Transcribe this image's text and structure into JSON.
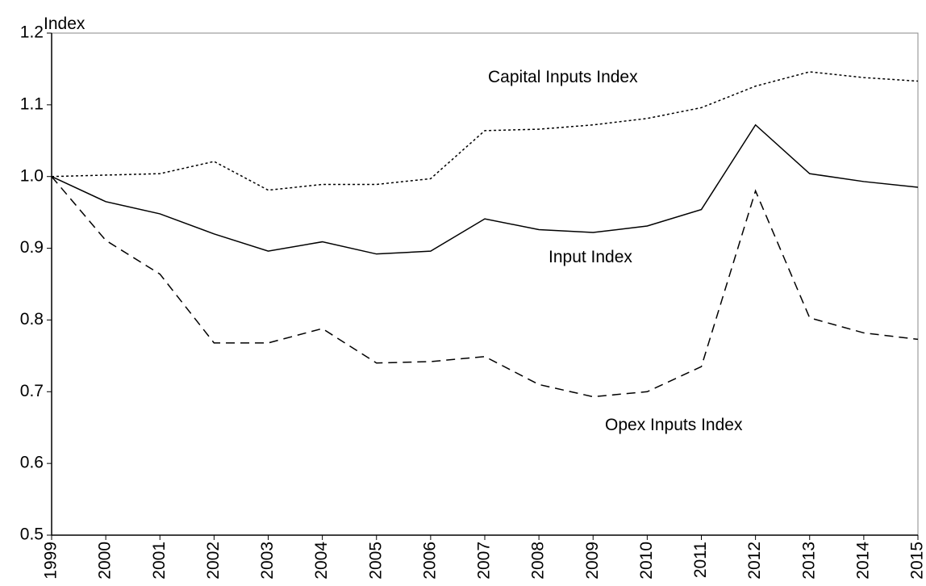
{
  "chart_data": {
    "type": "line",
    "y_label": "Index",
    "x": [
      1999,
      2000,
      2001,
      2002,
      2003,
      2004,
      2005,
      2006,
      2007,
      2008,
      2009,
      2010,
      2011,
      2012,
      2013,
      2014,
      2015
    ],
    "xlim": [
      1999,
      2015
    ],
    "xticks": [
      1999,
      2000,
      2001,
      2002,
      2003,
      2004,
      2005,
      2006,
      2007,
      2008,
      2009,
      2010,
      2011,
      2012,
      2013,
      2014,
      2015
    ],
    "ylim": [
      0.5,
      1.2
    ],
    "yticks": [
      0.5,
      0.6,
      0.7,
      0.8,
      0.9,
      {
        "value": 1,
        "label": "1.0"
      },
      1.1,
      1.2
    ],
    "series": [
      {
        "name": "Capital Inputs Index",
        "color": "#000000",
        "dash": "dotted",
        "values": [
          1.0,
          1.002,
          1.004,
          1.021,
          0.981,
          0.989,
          0.989,
          0.997,
          1.064,
          1.066,
          1.072,
          1.081,
          1.096,
          1.126,
          1.146,
          1.138,
          1.133
        ]
      },
      {
        "name": "Input Index",
        "color": "#000000",
        "dash": "solid",
        "values": [
          1.0,
          0.965,
          0.948,
          0.92,
          0.896,
          0.909,
          0.892,
          0.896,
          0.941,
          0.926,
          0.922,
          0.931,
          0.954,
          1.072,
          1.004,
          0.993,
          0.985
        ]
      },
      {
        "name": "Opex Inputs Index",
        "color": "#000000",
        "dash": "dashed",
        "values": [
          1.0,
          0.911,
          0.864,
          0.768,
          0.768,
          0.788,
          0.74,
          0.742,
          0.749,
          0.71,
          0.693,
          0.7,
          0.735,
          0.98,
          0.803,
          0.782,
          0.773
        ]
      }
    ]
  }
}
